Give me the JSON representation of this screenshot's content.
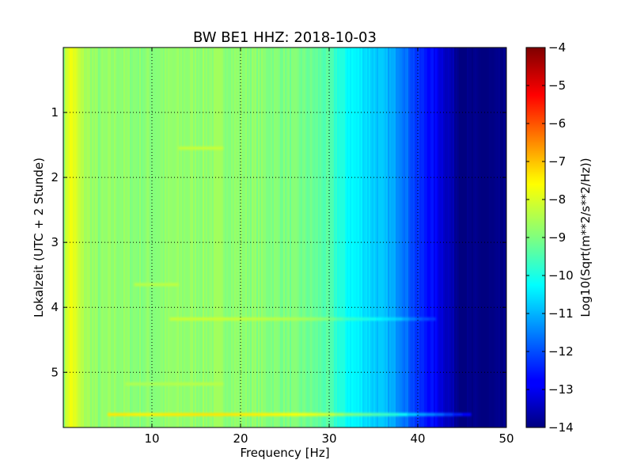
{
  "chart_data": {
    "type": "heatmap",
    "title": "BW BE1 HHZ: 2018-10-03",
    "xlabel": "Frequency [Hz]",
    "ylabel": "Lokalzeit (UTC + 2 Stunde)",
    "xlim": [
      0,
      50
    ],
    "ylim": [
      5.85,
      0.0
    ],
    "xticks": [
      10,
      20,
      30,
      40,
      50
    ],
    "yticks": [
      1,
      2,
      3,
      4,
      5
    ],
    "grid": true,
    "colormap": "jet",
    "colorbar": {
      "label": "Log10(Sqrt(m**2/s**2/Hz))",
      "range": [
        -14,
        -4
      ],
      "ticks": [
        -4,
        -5,
        -6,
        -7,
        -8,
        -9,
        -10,
        -11,
        -12,
        -13,
        -14
      ]
    },
    "frequency_profile": {
      "frequency_hz": [
        0,
        0.5,
        1,
        2,
        4,
        6,
        8,
        10,
        12,
        15,
        18,
        20,
        22,
        25,
        28,
        30,
        32,
        34,
        36,
        38,
        40,
        42,
        44,
        45,
        50
      ],
      "log10_amplitude": [
        -9.0,
        -8.0,
        -7.9,
        -8.5,
        -8.9,
        -8.8,
        -8.9,
        -8.9,
        -8.85,
        -8.8,
        -8.8,
        -8.85,
        -8.9,
        -9.0,
        -9.2,
        -9.5,
        -10.2,
        -10.5,
        -10.9,
        -11.3,
        -12.3,
        -12.8,
        -13.6,
        -14,
        -14
      ]
    },
    "features": [
      {
        "time_hours": 1.55,
        "freq_range_hz": [
          13,
          18
        ],
        "delta_log10": 0.5
      },
      {
        "time_hours": 3.65,
        "freq_range_hz": [
          8,
          13
        ],
        "delta_log10": 0.45
      },
      {
        "time_hours": 4.18,
        "freq_range_hz": [
          12,
          42
        ],
        "delta_log10": 0.55
      },
      {
        "time_hours": 5.18,
        "freq_range_hz": [
          7,
          18
        ],
        "delta_log10": 0.35
      },
      {
        "time_hours": 5.65,
        "freq_range_hz": [
          5,
          46
        ],
        "delta_log10": 1.3
      }
    ]
  }
}
